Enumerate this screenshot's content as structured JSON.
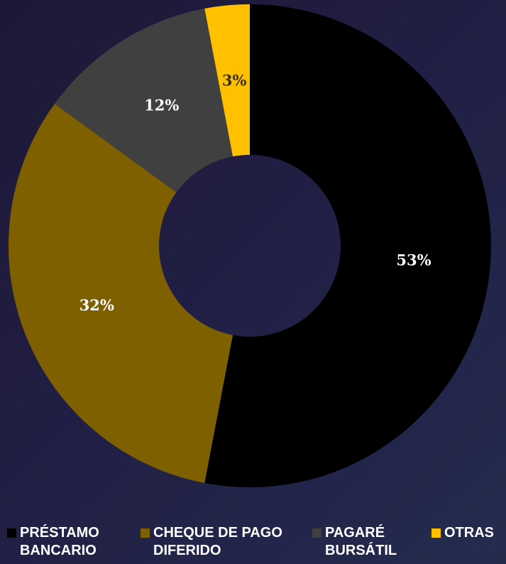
{
  "chart_data": {
    "type": "donut",
    "series": [
      {
        "name": "PRÉSTAMO BANCARIO",
        "color": "#000000",
        "value": 53,
        "value_label": "53%"
      },
      {
        "name": "CHEQUE DE PAGO DIFERIDO",
        "color": "#7f6000",
        "value": 32,
        "value_label": "32%"
      },
      {
        "name": "PAGARÉ BURSÁTIL",
        "color": "#404040",
        "value": 12,
        "value_label": "12%"
      },
      {
        "name": "OTRAS",
        "color": "#ffc000",
        "value": 3,
        "value_label": "3%"
      }
    ],
    "legend": "bottom"
  }
}
